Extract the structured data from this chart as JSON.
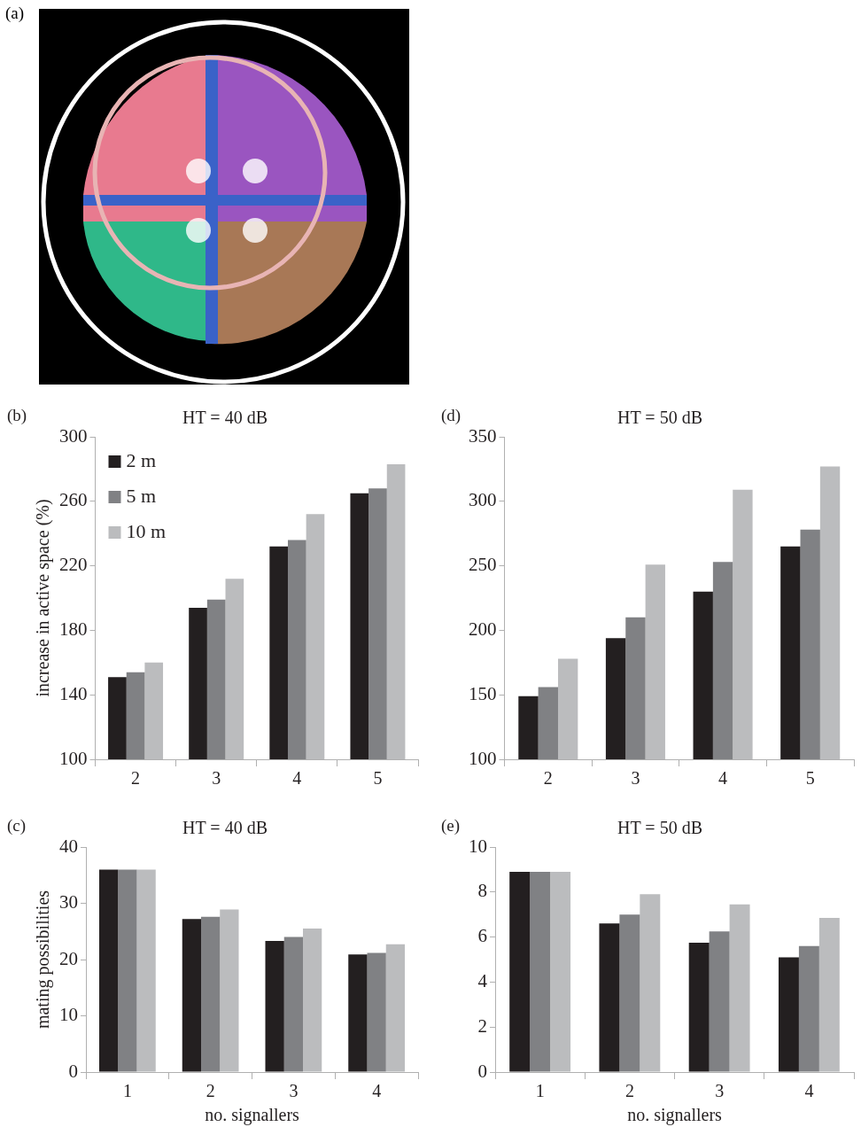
{
  "chart_data": [
    {
      "type": "other",
      "annotations": [
        "(a)"
      ]
    },
    {
      "type": "bar",
      "title": "HT = 40 dB",
      "annotations": [
        "(b)"
      ],
      "ylabel": "increase in active space (%)",
      "categories": [
        "2",
        "3",
        "4",
        "5"
      ],
      "ylim": [
        100,
        300
      ],
      "yticks": [
        100,
        140,
        180,
        220,
        260,
        300
      ],
      "grid": false,
      "legend": "top left",
      "series": [
        {
          "name": "2 m",
          "color": "#231f20",
          "values": [
            151,
            194,
            232,
            265
          ]
        },
        {
          "name": "5 m",
          "color": "#808184",
          "values": [
            154,
            199,
            236,
            268
          ]
        },
        {
          "name": "10 m",
          "color": "#bbbcbe",
          "values": [
            160,
            212,
            252,
            283
          ]
        }
      ]
    },
    {
      "type": "bar",
      "title": "HT = 50 dB",
      "annotations": [
        "(d)"
      ],
      "categories": [
        "2",
        "3",
        "4",
        "5"
      ],
      "ylim": [
        100,
        350
      ],
      "yticks": [
        100,
        150,
        200,
        250,
        300,
        350
      ],
      "grid": false,
      "series": [
        {
          "color": "#231f20",
          "values": [
            149,
            194,
            230,
            265
          ]
        },
        {
          "color": "#808184",
          "values": [
            156,
            210,
            253,
            278
          ]
        },
        {
          "color": "#bbbcbe",
          "values": [
            178,
            251,
            309,
            327
          ]
        }
      ]
    },
    {
      "type": "bar",
      "title": "HT = 40 dB",
      "annotations": [
        "(c)"
      ],
      "ylabel": "mating possibilities",
      "xlabel": "no. signallers",
      "categories": [
        "1",
        "2",
        "3",
        "4"
      ],
      "ylim": [
        0,
        40
      ],
      "yticks": [
        0,
        10,
        20,
        30,
        40
      ],
      "grid": false,
      "series": [
        {
          "color": "#231f20",
          "values": [
            36,
            27.2,
            23.3,
            20.9
          ]
        },
        {
          "color": "#808184",
          "values": [
            36,
            27.6,
            24,
            21.2
          ]
        },
        {
          "color": "#bbbcbe",
          "values": [
            36,
            28.9,
            25.5,
            22.7
          ]
        }
      ]
    },
    {
      "type": "bar",
      "title": "HT = 50 dB",
      "annotations": [
        "(e)"
      ],
      "xlabel": "no. signallers",
      "categories": [
        "1",
        "2",
        "3",
        "4"
      ],
      "ylim": [
        0,
        10
      ],
      "yticks": [
        0,
        2,
        4,
        6,
        8,
        10
      ],
      "grid": false,
      "series": [
        {
          "color": "#231f20",
          "values": [
            8.9,
            6.6,
            5.75,
            5.1
          ]
        },
        {
          "color": "#808184",
          "values": [
            8.9,
            7,
            6.25,
            5.6
          ]
        },
        {
          "color": "#bbbcbe",
          "values": [
            8.9,
            7.9,
            7.45,
            6.85
          ]
        }
      ]
    }
  ]
}
